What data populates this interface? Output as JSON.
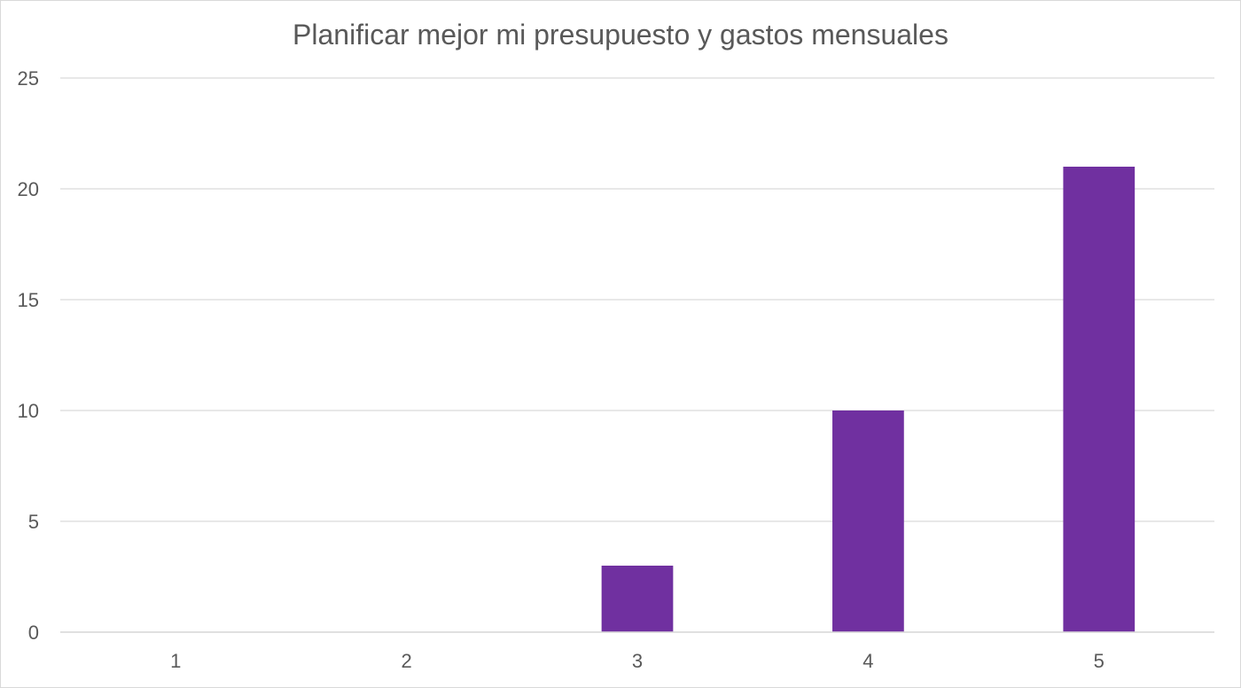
{
  "chart_data": {
    "type": "bar",
    "title": "Planificar mejor mi presupuesto y gastos mensuales",
    "xlabel": "",
    "ylabel": "",
    "categories": [
      "1",
      "2",
      "3",
      "4",
      "5"
    ],
    "values": [
      0,
      0,
      3,
      10,
      21
    ],
    "ylim": [
      0,
      25
    ],
    "yticks": [
      0,
      5,
      10,
      15,
      20,
      25
    ],
    "grid": true,
    "legend": "none",
    "bar_color": "#7030a0",
    "grid_color": "#d9d9d9",
    "text_color": "#595959"
  }
}
